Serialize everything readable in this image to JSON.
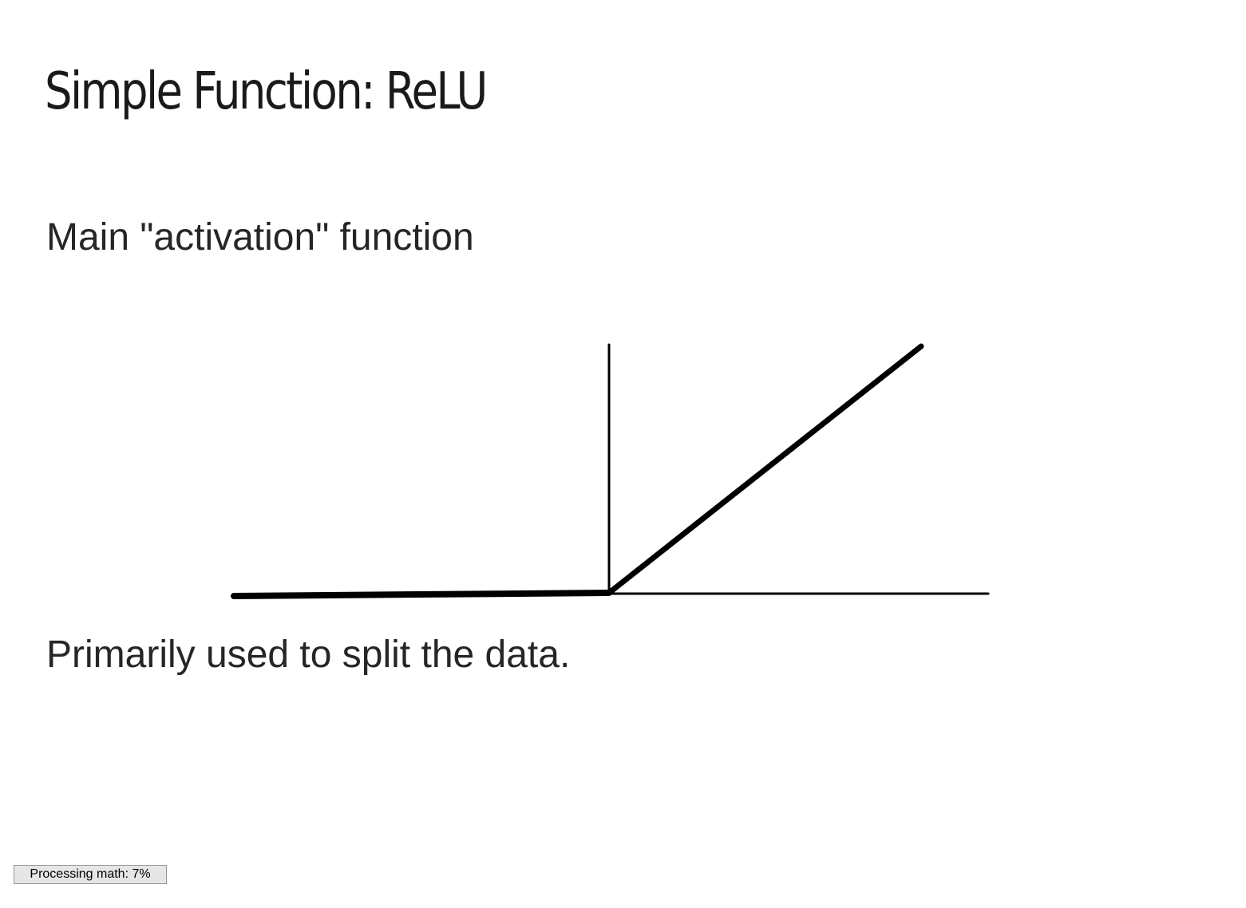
{
  "slide": {
    "title": "Simple Function: ReLU",
    "subtitle": "Main \"activation\" function",
    "caption": "Primarily used to split the data."
  },
  "figure": {
    "type": "line",
    "description_visible": "",
    "line_color": "#000000"
  },
  "status": {
    "label": "Processing math: 7%",
    "progress_percent": 7
  }
}
